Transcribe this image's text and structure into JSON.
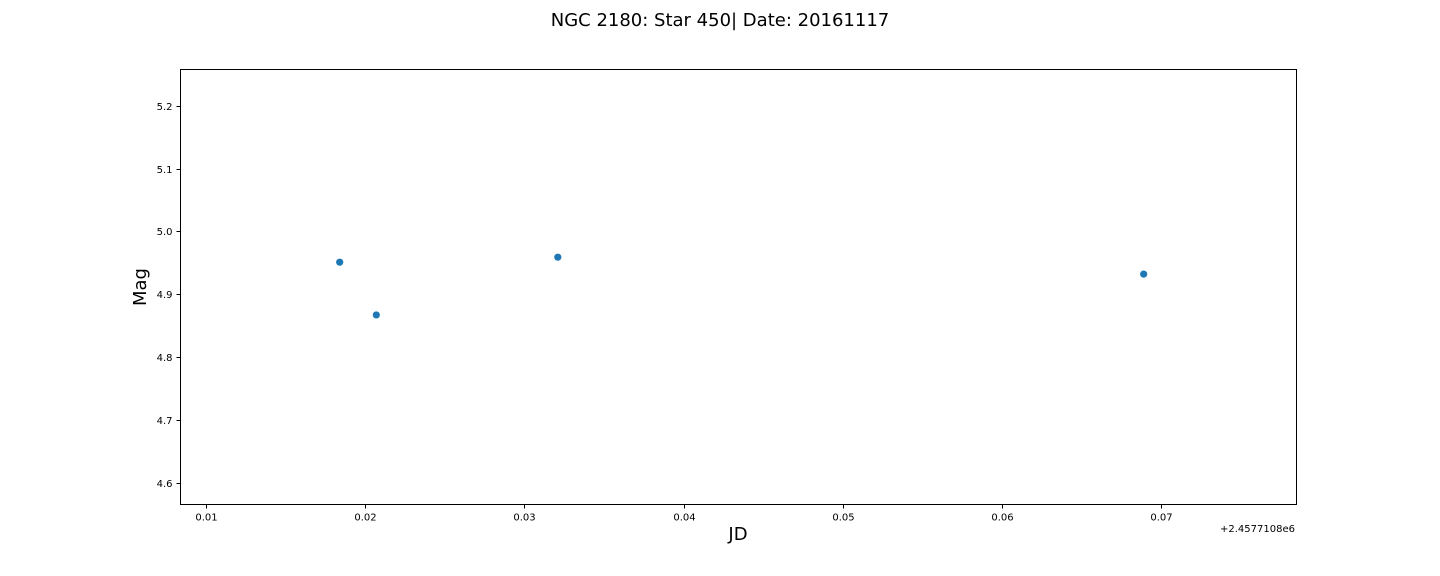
{
  "chart_data": {
    "type": "scatter",
    "title": "NGC 2180: Star 450| Date: 20161117",
    "xlabel": "JD",
    "ylabel": "Mag",
    "x_offset_label": "+2.4577108e6",
    "x_unit_note": "x values are relative to the offset +2.4577108e6",
    "xlim": [
      0.0084,
      0.0785
    ],
    "ylim": [
      4.565,
      5.258
    ],
    "x_ticks": [
      0.01,
      0.02,
      0.03,
      0.04,
      0.05,
      0.06,
      0.07
    ],
    "x_tick_labels": [
      "0.01",
      "0.02",
      "0.03",
      "0.04",
      "0.05",
      "0.06",
      "0.07"
    ],
    "y_ticks": [
      4.6,
      4.7,
      4.8,
      4.9,
      5.0,
      5.1,
      5.2
    ],
    "y_tick_labels": [
      "4.6",
      "4.7",
      "4.8",
      "4.9",
      "5.0",
      "5.1",
      "5.2"
    ],
    "grid": false,
    "series": [
      {
        "color": "#1f77b4",
        "marker": "circle",
        "points": [
          {
            "x": 0.0184,
            "y": 4.951
          },
          {
            "x": 0.0207,
            "y": 4.867
          },
          {
            "x": 0.0321,
            "y": 4.959
          },
          {
            "x": 0.0689,
            "y": 4.932
          }
        ]
      }
    ]
  }
}
